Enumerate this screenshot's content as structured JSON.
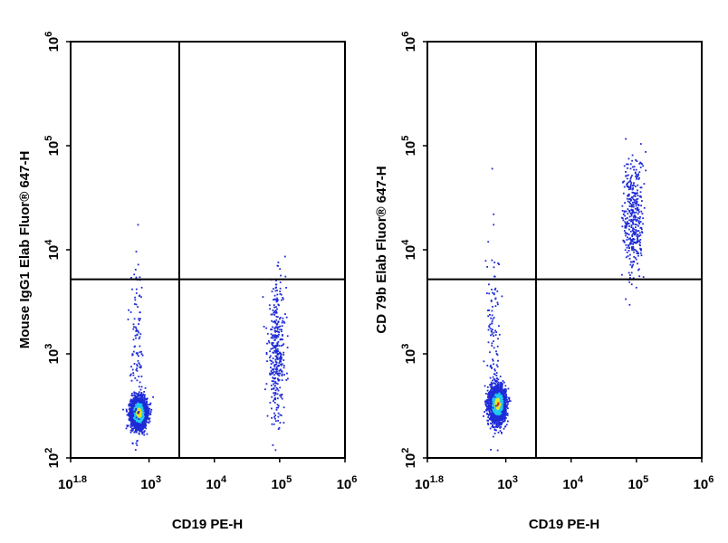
{
  "chart_data": [
    {
      "type": "scatter",
      "subtype": "flow-cytometry density dot plot",
      "xlabel": "CD19 PE-H",
      "ylabel": "Mouse IgG1 Elab Fluor® 647-H",
      "x_scale": "log",
      "y_scale": "log",
      "xlim": [
        63,
        1000000
      ],
      "ylim": [
        100,
        1000000
      ],
      "x_tick_labels": [
        {
          "value": 63,
          "label": "10^1.8"
        },
        {
          "value": 1000,
          "label": "10^3"
        },
        {
          "value": 10000,
          "label": "10^4"
        },
        {
          "value": 100000,
          "label": "10^5"
        },
        {
          "value": 1000000,
          "label": "10^6"
        }
      ],
      "y_tick_labels": [
        {
          "value": 100,
          "label": "10^2"
        },
        {
          "value": 1000,
          "label": "10^3"
        },
        {
          "value": 10000,
          "label": "10^4"
        },
        {
          "value": 100000,
          "label": "10^5"
        },
        {
          "value": 1000000,
          "label": "10^6"
        }
      ],
      "quadrant_gate": {
        "x": 2900,
        "y": 5200
      },
      "populations": [
        {
          "x_center": 700,
          "y_center": 270,
          "x_log_sd": 0.06,
          "y_log_sd": 0.07,
          "n": 2600,
          "density_colored": true
        },
        {
          "x_center": 90000,
          "y_center": 1000,
          "x_log_sd": 0.07,
          "y_log_sd": 0.33,
          "n": 360,
          "density_colored": false
        },
        {
          "x_center": 650,
          "y_center": 800,
          "x_log_sd": 0.05,
          "y_log_sd": 0.45,
          "n": 130,
          "density_colored": false
        }
      ],
      "grid": false
    },
    {
      "type": "scatter",
      "subtype": "flow-cytometry density dot plot",
      "xlabel": "CD19 PE-H",
      "ylabel": "CD 79b Elab Fluor® 647-H",
      "x_scale": "log",
      "y_scale": "log",
      "xlim": [
        63,
        1000000
      ],
      "ylim": [
        100,
        1000000
      ],
      "x_tick_labels": [
        {
          "value": 63,
          "label": "10^1.8"
        },
        {
          "value": 1000,
          "label": "10^3"
        },
        {
          "value": 10000,
          "label": "10^4"
        },
        {
          "value": 100000,
          "label": "10^5"
        },
        {
          "value": 1000000,
          "label": "10^6"
        }
      ],
      "y_tick_labels": [
        {
          "value": 100,
          "label": "10^2"
        },
        {
          "value": 1000,
          "label": "10^3"
        },
        {
          "value": 10000,
          "label": "10^4"
        },
        {
          "value": 100000,
          "label": "10^5"
        },
        {
          "value": 1000000,
          "label": "10^6"
        }
      ],
      "quadrant_gate": {
        "x": 2900,
        "y": 5200
      },
      "populations": [
        {
          "x_center": 750,
          "y_center": 330,
          "x_log_sd": 0.06,
          "y_log_sd": 0.08,
          "n": 2600,
          "density_colored": true
        },
        {
          "x_center": 90000,
          "y_center": 20000,
          "x_log_sd": 0.08,
          "y_log_sd": 0.3,
          "n": 380,
          "density_colored": false
        },
        {
          "x_center": 650,
          "y_center": 1200,
          "x_log_sd": 0.05,
          "y_log_sd": 0.45,
          "n": 120,
          "density_colored": false
        }
      ],
      "grid": false
    }
  ],
  "colors": {
    "sparse_dot": "#1f2bd6",
    "density_low": "#1f2bd6",
    "density_mid": "#21c9ef",
    "density_high": "#f0e51a",
    "density_peak": "#e0201a",
    "frame": "#000000"
  }
}
